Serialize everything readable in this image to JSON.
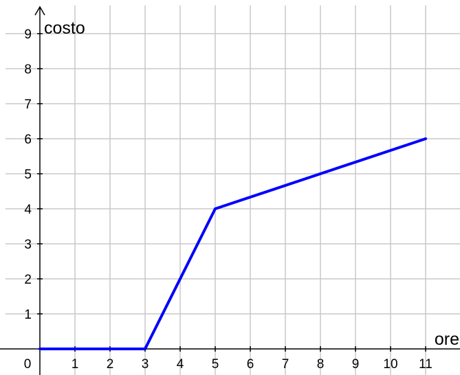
{
  "chart_data": {
    "type": "line",
    "title": "",
    "xlabel": "ore",
    "ylabel": "costo",
    "xlim": [
      0,
      12
    ],
    "ylim": [
      0,
      9.5
    ],
    "origin_label": "0",
    "x_ticks": [
      1,
      2,
      3,
      4,
      5,
      6,
      7,
      8,
      9,
      10,
      11
    ],
    "y_ticks": [
      1,
      2,
      3,
      4,
      5,
      6,
      7,
      8,
      9
    ],
    "grid": true,
    "legend": "none",
    "series": [
      {
        "color": "#0000ff",
        "points": [
          {
            "x": 0,
            "y": 0
          },
          {
            "x": 3,
            "y": 0
          },
          {
            "x": 5,
            "y": 4
          },
          {
            "x": 11,
            "y": 6
          }
        ]
      }
    ],
    "colors": {
      "grid": "#c8c8c8",
      "axis": "#000000",
      "line": "#0000ff"
    }
  }
}
